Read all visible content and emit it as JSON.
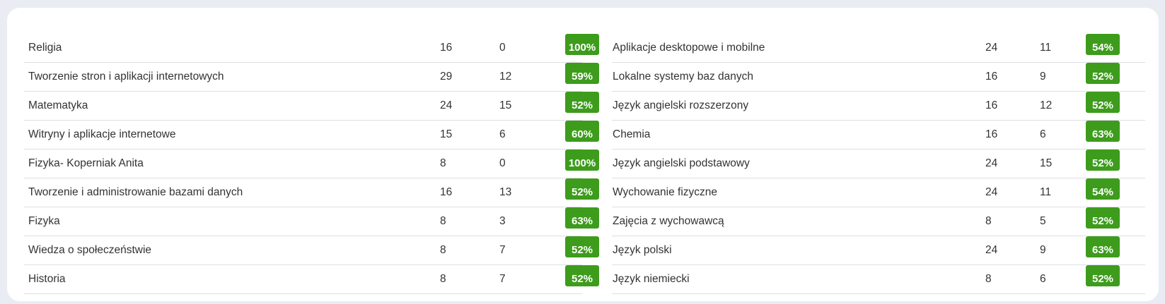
{
  "colors": {
    "badge_bg": "#3d9c1c",
    "badge_text": "#ffffff",
    "divider": "#dcdfe3",
    "page_bg": "#e9edf3"
  },
  "left_rows": [
    {
      "subject": "Religia",
      "v1": "16",
      "v2": "0",
      "percent": "100%"
    },
    {
      "subject": "Tworzenie stron i aplikacji internetowych",
      "v1": "29",
      "v2": "12",
      "percent": "59%"
    },
    {
      "subject": "Matematyka",
      "v1": "24",
      "v2": "15",
      "percent": "52%"
    },
    {
      "subject": "Witryny i aplikacje internetowe",
      "v1": "15",
      "v2": "6",
      "percent": "60%"
    },
    {
      "subject": "Fizyka- Koperniak Anita",
      "v1": "8",
      "v2": "0",
      "percent": "100%"
    },
    {
      "subject": "Tworzenie i administrowanie bazami danych",
      "v1": "16",
      "v2": "13",
      "percent": "52%"
    },
    {
      "subject": "Fizyka",
      "v1": "8",
      "v2": "3",
      "percent": "63%"
    },
    {
      "subject": "Wiedza o społeczeństwie",
      "v1": "8",
      "v2": "7",
      "percent": "52%"
    },
    {
      "subject": "Historia",
      "v1": "8",
      "v2": "7",
      "percent": "52%"
    }
  ],
  "right_rows": [
    {
      "subject": "Aplikacje desktopowe i mobilne",
      "v1": "24",
      "v2": "11",
      "percent": "54%"
    },
    {
      "subject": "Lokalne systemy baz danych",
      "v1": "16",
      "v2": "9",
      "percent": "52%"
    },
    {
      "subject": "Język angielski rozszerzony",
      "v1": "16",
      "v2": "12",
      "percent": "52%"
    },
    {
      "subject": "Chemia",
      "v1": "16",
      "v2": "6",
      "percent": "63%"
    },
    {
      "subject": "Język angielski podstawowy",
      "v1": "24",
      "v2": "15",
      "percent": "52%"
    },
    {
      "subject": "Wychowanie fizyczne",
      "v1": "24",
      "v2": "11",
      "percent": "54%"
    },
    {
      "subject": "Zajęcia z wychowawcą",
      "v1": "8",
      "v2": "5",
      "percent": "52%"
    },
    {
      "subject": "Język polski",
      "v1": "24",
      "v2": "9",
      "percent": "63%"
    },
    {
      "subject": "Język niemiecki",
      "v1": "8",
      "v2": "6",
      "percent": "52%"
    }
  ]
}
